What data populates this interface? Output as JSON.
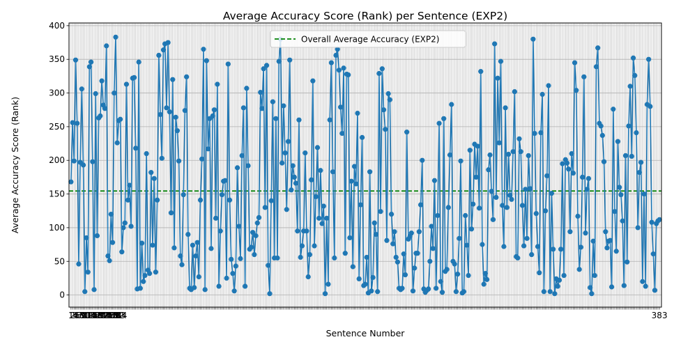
{
  "chart_data": {
    "type": "line",
    "title": "Average Accuracy Score (Rank) per Sentence (EXP2)",
    "xlabel": "Sentence Number",
    "ylabel": "Average Accuracy Score (Rank)",
    "ylim": [
      -18,
      404
    ],
    "yticks": [
      0,
      50,
      100,
      150,
      200,
      250,
      300,
      350,
      400
    ],
    "grid": true,
    "legend_position": "upper center",
    "reference_line": {
      "label": "Overall Average Accuracy (EXP2)",
      "value": 154.5,
      "color": "#008000",
      "style": "dashed"
    },
    "series": [
      {
        "color": "#1f77b4",
        "x_start": 1,
        "values": [
          168,
          256,
          199,
          349,
          255,
          46,
          197,
          306,
          193,
          5,
          85,
          34,
          339,
          346,
          198,
          8,
          299,
          88,
          263,
          266,
          318,
          282,
          277,
          370,
          58,
          51,
          120,
          78,
          300,
          383,
          226,
          259,
          261,
          64,
          100,
          107,
          313,
          141,
          163,
          102,
          322,
          323,
          218,
          9,
          346,
          10,
          77,
          20,
          29,
          210,
          37,
          32,
          182,
          74,
          173,
          34,
          141,
          356,
          268,
          203,
          364,
          373,
          278,
          375,
          272,
          122,
          320,
          70,
          264,
          244,
          199,
          58,
          45,
          149,
          274,
          324,
          90,
          10,
          8,
          74,
          11,
          58,
          78,
          27,
          141,
          202,
          365,
          8,
          348,
          217,
          262,
          69,
          266,
          275,
          114,
          313,
          13,
          95,
          149,
          169,
          170,
          25,
          343,
          141,
          53,
          32,
          6,
          43,
          189,
          102,
          54,
          207,
          278,
          13,
          307,
          192,
          68,
          71,
          93,
          60,
          88,
          107,
          115,
          301,
          277,
          336,
          130,
          341,
          44,
          2,
          140,
          287,
          55,
          262,
          55,
          347,
          380,
          196,
          281,
          211,
          127,
          228,
          349,
          156,
          192,
          175,
          166,
          95,
          260,
          56,
          73,
          95,
          211,
          95,
          27,
          60,
          171,
          318,
          73,
          146,
          219,
          114,
          185,
          106,
          132,
          2,
          114,
          16,
          260,
          345,
          183,
          55,
          356,
          365,
          334,
          279,
          240,
          337,
          62,
          328,
          327,
          85,
          169,
          42,
          191,
          165,
          270,
          24,
          134,
          234,
          14,
          16,
          56,
          3,
          183,
          6,
          26,
          107,
          90,
          5,
          329,
          124,
          336,
          275,
          246,
          81,
          299,
          290,
          120,
          76,
          94,
          56,
          49,
          10,
          8,
          10,
          61,
          30,
          242,
          83,
          87,
          92,
          6,
          40,
          62,
          62,
          94,
          134,
          200,
          9,
          4,
          7,
          9,
          50,
          102,
          69,
          170,
          10,
          118,
          255,
          20,
          4,
          262,
          35,
          38,
          130,
          208,
          283,
          50,
          46,
          5,
          31,
          84,
          199,
          3,
          5,
          118,
          74,
          29,
          215,
          98,
          135,
          224,
          175,
          221,
          129,
          332,
          75,
          16,
          32,
          23,
          186,
          208,
          154,
          112,
          373,
          145,
          322,
          226,
          347,
          133,
          72,
          278,
          130,
          209,
          148,
          142,
          213,
          302,
          57,
          55,
          232,
          213,
          133,
          73,
          157,
          84,
          207,
          158,
          60,
          380,
          240,
          121,
          72,
          33,
          241,
          298,
          5,
          125,
          177,
          311,
          5,
          151,
          68,
          2,
          24,
          13,
          22,
          68,
          195,
          29,
          201,
          196,
          187,
          94,
          210,
          181,
          345,
          304,
          117,
          38,
          71,
          175,
          324,
          92,
          157,
          173,
          11,
          2,
          80,
          29,
          339,
          367,
          255,
          251,
          237,
          198,
          94,
          70,
          80,
          81,
          12,
          276,
          124,
          65,
          228,
          160,
          149,
          110,
          14,
          207,
          49,
          251,
          310,
          206,
          352,
          326,
          241,
          100,
          182,
          197,
          20,
          150,
          13,
          283,
          350,
          280,
          108,
          61,
          7,
          106,
          110,
          112
        ]
      }
    ],
    "x_tick_labels": [
      "1",
      "2",
      "3",
      "4",
      "5",
      "6",
      "7",
      "8",
      "9",
      "10",
      "11",
      "12",
      "13",
      "14",
      "15",
      "16",
      "17",
      "18",
      "19",
      "20",
      "21",
      "22",
      "23",
      "24",
      "25",
      "26",
      "27",
      "28",
      "29",
      "30",
      "31",
      "32",
      "33",
      "34"
    ]
  }
}
